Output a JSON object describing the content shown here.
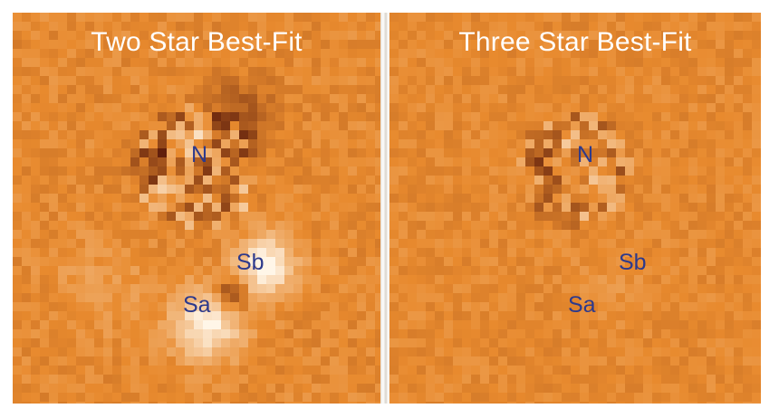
{
  "panels": [
    {
      "title": "Two Star Best-Fit",
      "labels": {
        "north": "N",
        "south_b": "Sb",
        "south_a": "Sa"
      }
    },
    {
      "title": "Three Star Best-Fit",
      "labels": {
        "north": "N",
        "south_b": "Sb",
        "south_a": "Sa"
      }
    }
  ],
  "colors": {
    "background_orange": "#e88a2e",
    "residual_dark": "#5a1a0a",
    "residual_bright": "#fff6e8",
    "label_blue": "#2d3a8c",
    "title_white": "#ffffff"
  }
}
